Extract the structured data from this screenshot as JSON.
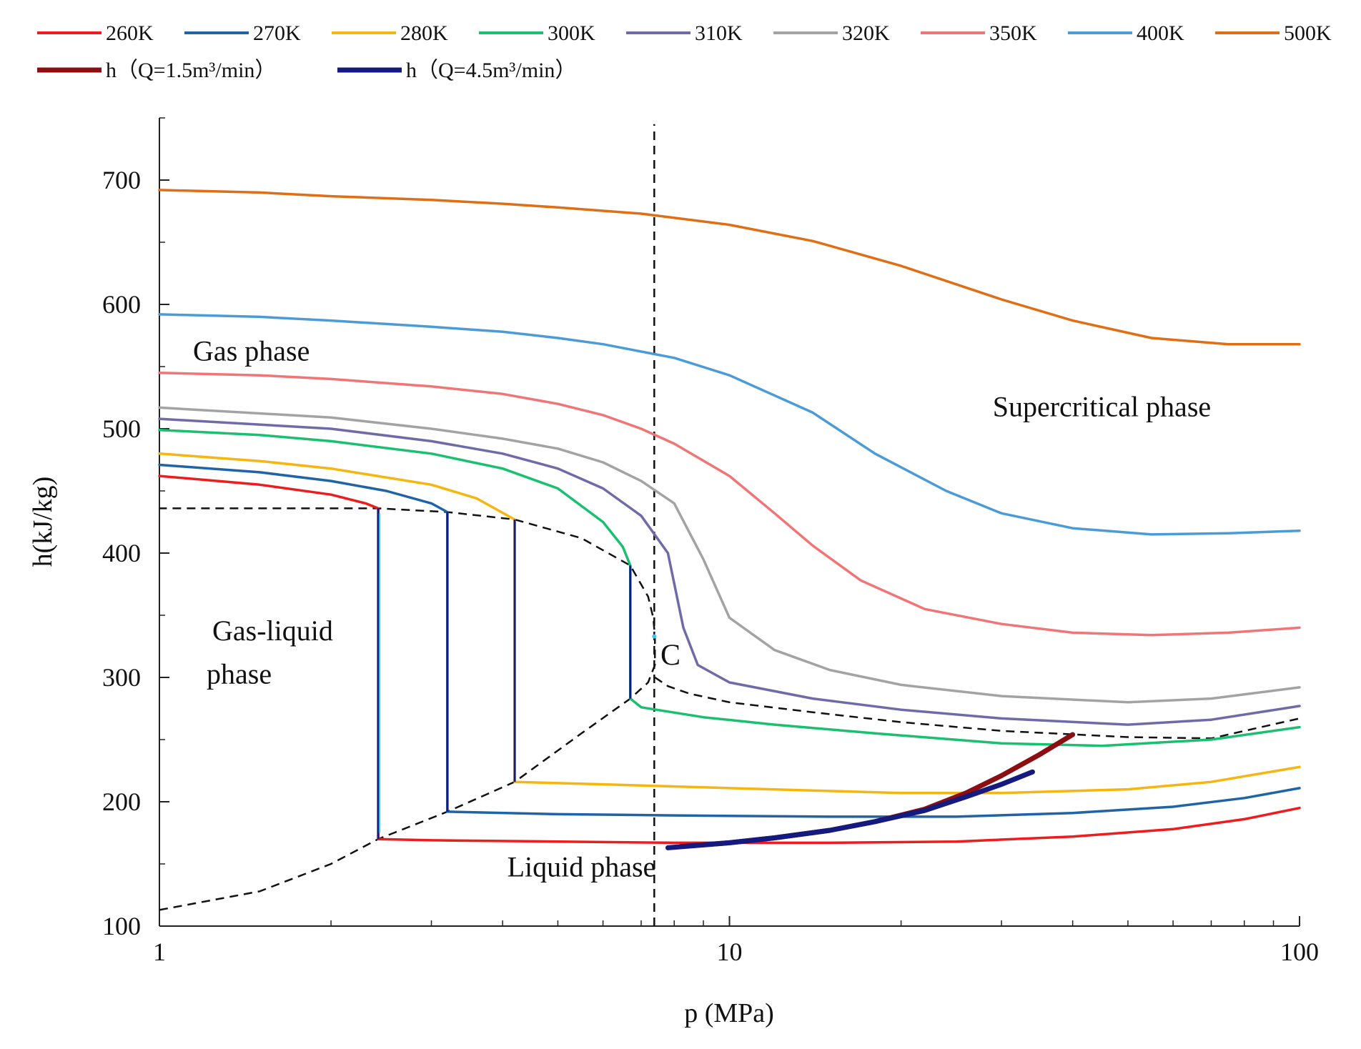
{
  "chart_data": {
    "type": "line",
    "xlabel": "p (MPa)",
    "ylabel": "h(kJ/kg)",
    "xscale": "log",
    "xlim": [
      1,
      100
    ],
    "ylim": [
      100,
      750
    ],
    "x_ticks": [
      1,
      10,
      100
    ],
    "x_tick_labels": [
      "1",
      "10",
      "100"
    ],
    "y_ticks": [
      100,
      200,
      300,
      400,
      500,
      600,
      700
    ],
    "y_tick_labels": [
      "100",
      "200",
      "300",
      "400",
      "500",
      "600",
      "700"
    ],
    "legend_placement": "top",
    "legend": [
      {
        "label": "260K",
        "color": "#ee1c1c"
      },
      {
        "label": "270K",
        "color": "#1f64a6"
      },
      {
        "label": "280K",
        "color": "#f6b60f"
      },
      {
        "label": "300K",
        "color": "#19c06f"
      },
      {
        "label": "310K",
        "color": "#6f6aa8"
      },
      {
        "label": "320K",
        "color": "#a3a3a3"
      },
      {
        "label": "350K",
        "color": "#f17576"
      },
      {
        "label": "400K",
        "color": "#4b9bd8"
      },
      {
        "label": "500K",
        "color": "#e06e14"
      },
      {
        "label": "h（Q=1.5m³/min）",
        "color": "#8b0f12"
      },
      {
        "label": "h（Q=4.5m³/min）",
        "color": "#141a7e"
      }
    ],
    "series": [
      {
        "name": "260K",
        "color": "#ee1c1c",
        "points": [
          [
            1,
            462
          ],
          [
            1.5,
            455
          ],
          [
            2,
            447
          ],
          [
            2.3,
            440
          ],
          [
            2.42,
            436
          ],
          [
            2.42,
            170
          ],
          [
            3,
            169
          ],
          [
            5,
            168
          ],
          [
            8,
            167
          ],
          [
            15,
            167
          ],
          [
            25,
            168
          ],
          [
            40,
            172
          ],
          [
            60,
            178
          ],
          [
            80,
            186
          ],
          [
            100,
            195
          ]
        ]
      },
      {
        "name": "270K",
        "color": "#1f64a6",
        "points": [
          [
            1,
            471
          ],
          [
            1.5,
            465
          ],
          [
            2,
            458
          ],
          [
            2.5,
            450
          ],
          [
            3,
            440
          ],
          [
            3.2,
            433
          ],
          [
            3.2,
            192
          ],
          [
            5,
            190
          ],
          [
            8,
            189
          ],
          [
            15,
            188
          ],
          [
            25,
            188
          ],
          [
            40,
            191
          ],
          [
            60,
            196
          ],
          [
            80,
            203
          ],
          [
            100,
            211
          ]
        ]
      },
      {
        "name": "280K",
        "color": "#f6b60f",
        "points": [
          [
            1,
            480
          ],
          [
            1.5,
            474
          ],
          [
            2,
            468
          ],
          [
            3,
            455
          ],
          [
            3.6,
            444
          ],
          [
            4.2,
            427
          ],
          [
            4.2,
            216
          ],
          [
            6,
            214
          ],
          [
            10,
            211
          ],
          [
            20,
            207
          ],
          [
            30,
            207
          ],
          [
            50,
            210
          ],
          [
            70,
            216
          ],
          [
            100,
            228
          ]
        ]
      },
      {
        "name": "300K",
        "color": "#19c06f",
        "points": [
          [
            1,
            499
          ],
          [
            1.5,
            495
          ],
          [
            2,
            490
          ],
          [
            3,
            480
          ],
          [
            4,
            468
          ],
          [
            5,
            452
          ],
          [
            6,
            425
          ],
          [
            6.5,
            405
          ],
          [
            6.7,
            390
          ],
          [
            6.7,
            283
          ],
          [
            7,
            276
          ],
          [
            9,
            268
          ],
          [
            12,
            262
          ],
          [
            18,
            255
          ],
          [
            30,
            247
          ],
          [
            45,
            245
          ],
          [
            70,
            250
          ],
          [
            100,
            260
          ]
        ]
      },
      {
        "name": "310K",
        "color": "#6f6aa8",
        "points": [
          [
            1,
            508
          ],
          [
            2,
            500
          ],
          [
            3,
            490
          ],
          [
            4,
            480
          ],
          [
            5,
            468
          ],
          [
            6,
            452
          ],
          [
            7,
            430
          ],
          [
            7.8,
            400
          ],
          [
            8.3,
            340
          ],
          [
            8.8,
            310
          ],
          [
            10,
            296
          ],
          [
            14,
            283
          ],
          [
            20,
            274
          ],
          [
            30,
            267
          ],
          [
            50,
            262
          ],
          [
            70,
            266
          ],
          [
            100,
            277
          ]
        ]
      },
      {
        "name": "320K",
        "color": "#a3a3a3",
        "points": [
          [
            1,
            517
          ],
          [
            2,
            509
          ],
          [
            3,
            500
          ],
          [
            4,
            492
          ],
          [
            5,
            484
          ],
          [
            6,
            473
          ],
          [
            7,
            458
          ],
          [
            8,
            440
          ],
          [
            9,
            395
          ],
          [
            10,
            348
          ],
          [
            12,
            322
          ],
          [
            15,
            306
          ],
          [
            20,
            294
          ],
          [
            30,
            285
          ],
          [
            50,
            280
          ],
          [
            70,
            283
          ],
          [
            100,
            292
          ]
        ]
      },
      {
        "name": "350K",
        "color": "#f17576",
        "points": [
          [
            1,
            545
          ],
          [
            1.5,
            543
          ],
          [
            2,
            540
          ],
          [
            3,
            534
          ],
          [
            4,
            528
          ],
          [
            5,
            520
          ],
          [
            6,
            511
          ],
          [
            7,
            500
          ],
          [
            8,
            488
          ],
          [
            10,
            462
          ],
          [
            12,
            432
          ],
          [
            14,
            406
          ],
          [
            17,
            378
          ],
          [
            22,
            355
          ],
          [
            30,
            343
          ],
          [
            40,
            336
          ],
          [
            55,
            334
          ],
          [
            75,
            336
          ],
          [
            100,
            340
          ]
        ]
      },
      {
        "name": "400K",
        "color": "#4b9bd8",
        "points": [
          [
            1,
            592
          ],
          [
            1.5,
            590
          ],
          [
            2,
            587
          ],
          [
            3,
            582
          ],
          [
            4,
            578
          ],
          [
            5,
            573
          ],
          [
            6,
            568
          ],
          [
            8,
            557
          ],
          [
            10,
            543
          ],
          [
            14,
            513
          ],
          [
            18,
            480
          ],
          [
            24,
            450
          ],
          [
            30,
            432
          ],
          [
            40,
            420
          ],
          [
            55,
            415
          ],
          [
            75,
            416
          ],
          [
            100,
            418
          ]
        ]
      },
      {
        "name": "500K",
        "color": "#e06e14",
        "points": [
          [
            1,
            692
          ],
          [
            1.5,
            690
          ],
          [
            2,
            687
          ],
          [
            3,
            684
          ],
          [
            4,
            681
          ],
          [
            5,
            678
          ],
          [
            7,
            673
          ],
          [
            10,
            664
          ],
          [
            14,
            651
          ],
          [
            20,
            631
          ],
          [
            30,
            604
          ],
          [
            40,
            587
          ],
          [
            55,
            573
          ],
          [
            75,
            568
          ],
          [
            100,
            568
          ]
        ]
      },
      {
        "name": "h（Q=1.5m³/min）",
        "color": "#8b0f12",
        "points": [
          [
            8.2,
            164
          ],
          [
            10,
            167
          ],
          [
            12,
            171
          ],
          [
            15,
            177
          ],
          [
            18,
            184
          ],
          [
            22,
            194
          ],
          [
            26,
            207
          ],
          [
            30,
            221
          ],
          [
            35,
            238
          ],
          [
            40,
            254
          ]
        ]
      },
      {
        "name": "h（Q=4.5m³/min）",
        "color": "#141a7e",
        "points": [
          [
            7.8,
            163
          ],
          [
            10,
            167
          ],
          [
            12,
            171
          ],
          [
            15,
            177
          ],
          [
            18,
            184
          ],
          [
            22,
            193
          ],
          [
            26,
            204
          ],
          [
            30,
            214
          ],
          [
            34,
            224
          ]
        ]
      }
    ],
    "boundaries": [
      {
        "name": "saturation-dome",
        "style": "dashed",
        "color": "#111111",
        "points": [
          [
            1,
            113
          ],
          [
            1.5,
            128
          ],
          [
            2,
            150
          ],
          [
            2.42,
            170
          ],
          [
            3.2,
            192
          ],
          [
            4.2,
            216
          ],
          [
            5.5,
            255
          ],
          [
            6.7,
            283
          ],
          [
            7.2,
            296
          ],
          [
            7.4,
            310
          ],
          [
            7.4,
            333
          ],
          [
            7.35,
            348
          ],
          [
            7.2,
            365
          ],
          [
            6.7,
            390
          ],
          [
            5.5,
            412
          ],
          [
            4.2,
            427
          ],
          [
            3.2,
            433
          ],
          [
            2.42,
            436
          ],
          [
            1.8,
            436
          ],
          [
            1,
            436
          ]
        ]
      },
      {
        "name": "critical-boundary-right",
        "style": "dashed",
        "color": "#111111",
        "points": [
          [
            7.4,
            300
          ],
          [
            7.8,
            293
          ],
          [
            8.5,
            287
          ],
          [
            10,
            280
          ],
          [
            14,
            272
          ],
          [
            20,
            264
          ],
          [
            30,
            257
          ],
          [
            50,
            252
          ],
          [
            70,
            251
          ],
          [
            100,
            267
          ]
        ]
      },
      {
        "name": "critical-pressure-line",
        "style": "dashed",
        "color": "#111111",
        "points": [
          [
            7.38,
            100
          ],
          [
            7.38,
            745
          ]
        ]
      }
    ],
    "annotations": [
      {
        "id": "gas",
        "text": "Gas phase"
      },
      {
        "id": "supercritical",
        "text": "Supercritical phase"
      },
      {
        "id": "gas_liquid_1",
        "text": "Gas-liquid"
      },
      {
        "id": "gas_liquid_2",
        "text": "phase"
      },
      {
        "id": "liquid",
        "text": "Liquid phase"
      },
      {
        "id": "critical_point",
        "text": "C"
      }
    ]
  }
}
